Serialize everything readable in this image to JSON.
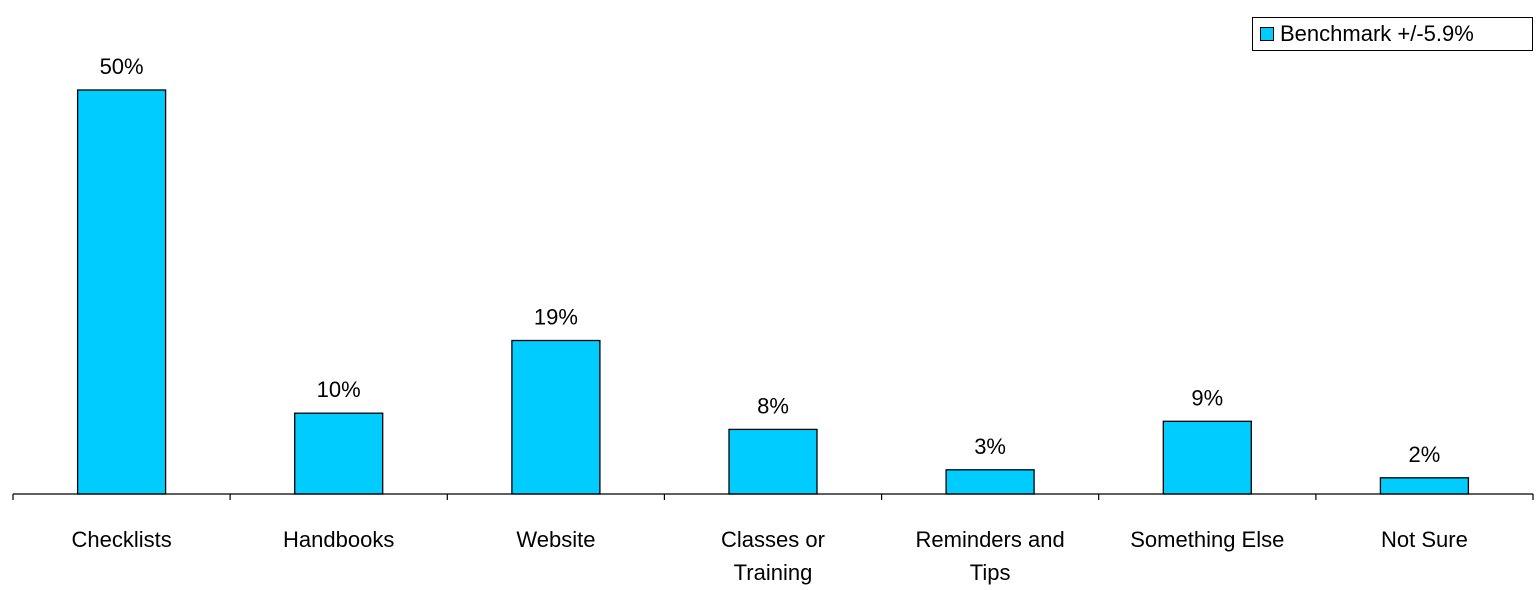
{
  "chart_data": {
    "type": "bar",
    "title": "",
    "xlabel": "",
    "ylabel": "",
    "categories": [
      [
        "Checklists"
      ],
      [
        "Handbooks"
      ],
      [
        "Website"
      ],
      [
        "Classes or",
        "Training"
      ],
      [
        "Reminders and",
        "Tips"
      ],
      [
        "Something Else"
      ],
      [
        "Not Sure"
      ]
    ],
    "series": [
      {
        "name": "Benchmark +/-5.9%",
        "color": "#00ccff",
        "values": [
          50,
          10,
          19,
          8,
          3,
          9,
          2
        ],
        "labels": [
          "50%",
          "10%",
          "19%",
          "8%",
          "3%",
          "9%",
          "2%"
        ]
      }
    ],
    "ylim": [
      0,
      50
    ],
    "grid": false,
    "y_axis_visible": false,
    "legend_position": "top-right"
  }
}
